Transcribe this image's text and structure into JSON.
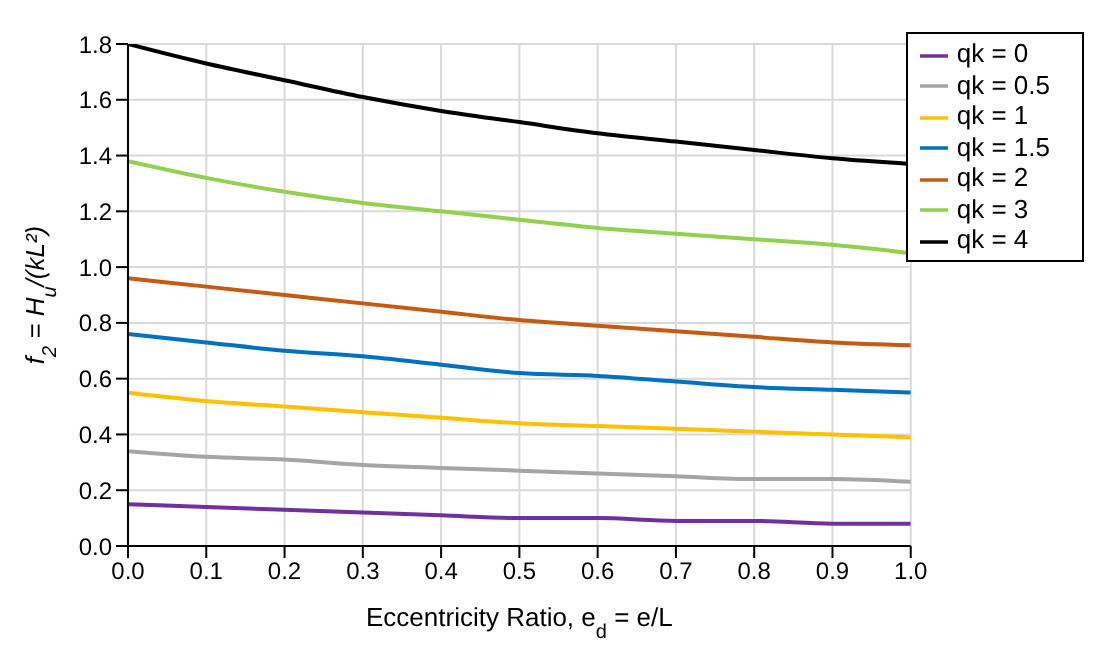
{
  "chart_data": {
    "type": "line",
    "xlabel": "Eccentricity Ratio, e$_{d}$ = e/L",
    "ylabel": "f$_{2}$ = H$_{u}$/(kL²)",
    "x": [
      0,
      0.1,
      0.2,
      0.3,
      0.4,
      0.5,
      0.6,
      0.7,
      0.8,
      0.9,
      1.0
    ],
    "series": [
      {
        "name": "qk = 4",
        "color": "#000000",
        "values": [
          1.8,
          1.73,
          1.67,
          1.61,
          1.56,
          1.52,
          1.48,
          1.45,
          1.42,
          1.39,
          1.37
        ]
      },
      {
        "name": "qk = 3",
        "color": "#92d050",
        "values": [
          1.38,
          1.32,
          1.27,
          1.23,
          1.2,
          1.17,
          1.14,
          1.12,
          1.1,
          1.08,
          1.05
        ]
      },
      {
        "name": "qk = 2",
        "color": "#c55a11",
        "values": [
          0.96,
          0.93,
          0.9,
          0.87,
          0.84,
          0.81,
          0.79,
          0.77,
          0.75,
          0.73,
          0.72
        ]
      },
      {
        "name": "qk = 1.5",
        "color": "#0070c0",
        "values": [
          0.76,
          0.73,
          0.7,
          0.68,
          0.65,
          0.62,
          0.61,
          0.59,
          0.57,
          0.56,
          0.55
        ]
      },
      {
        "name": "qk = 1",
        "color": "#ffc000",
        "values": [
          0.55,
          0.52,
          0.5,
          0.48,
          0.46,
          0.44,
          0.43,
          0.42,
          0.41,
          0.4,
          0.39
        ]
      },
      {
        "name": "qk = 0.5",
        "color": "#a5a5a5",
        "values": [
          0.34,
          0.32,
          0.31,
          0.29,
          0.28,
          0.27,
          0.26,
          0.25,
          0.24,
          0.24,
          0.23
        ]
      },
      {
        "name": "qk = 0",
        "color": "#7030a0",
        "values": [
          0.15,
          0.14,
          0.13,
          0.12,
          0.11,
          0.1,
          0.1,
          0.09,
          0.09,
          0.08,
          0.08
        ]
      }
    ],
    "xlim": [
      0,
      1.0
    ],
    "xticks": [
      {
        "value": 0,
        "label": "0.0"
      },
      {
        "value": 0.1,
        "label": "0.1"
      },
      {
        "value": 0.2,
        "label": "0.2"
      },
      {
        "value": 0.3,
        "label": "0.3"
      },
      {
        "value": 0.4,
        "label": "0.4"
      },
      {
        "value": 0.5,
        "label": "0.5"
      },
      {
        "value": 0.6,
        "label": "0.6"
      },
      {
        "value": 0.7,
        "label": "0.7"
      },
      {
        "value": 0.8,
        "label": "0.8"
      },
      {
        "value": 0.9,
        "label": "0.9"
      },
      {
        "value": 1.0,
        "label": "1.0"
      }
    ],
    "ylim": [
      0,
      1.8
    ],
    "yticks": [
      {
        "value": 0,
        "label": "0.0"
      },
      {
        "value": 0.2,
        "label": "0.2"
      },
      {
        "value": 0.4,
        "label": "0.4"
      },
      {
        "value": 0.6,
        "label": "0.6"
      },
      {
        "value": 0.8,
        "label": "0.8"
      },
      {
        "value": 1.0,
        "label": "1.0"
      },
      {
        "value": 1.2,
        "label": "1.2"
      },
      {
        "value": 1.4,
        "label": "1.4"
      },
      {
        "value": 1.6,
        "label": "1.6"
      },
      {
        "value": 1.8,
        "label": "1.8"
      }
    ],
    "grid": true,
    "legend": "top right",
    "marker": "none",
    "line_style": "solid"
  }
}
